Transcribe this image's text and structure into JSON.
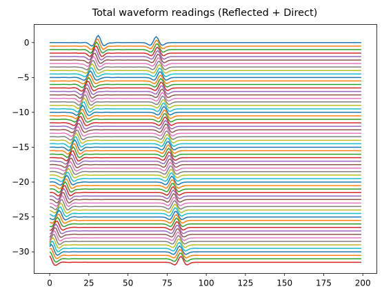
{
  "chart_data": {
    "type": "line",
    "title": "Total waveform readings (Reflected + Direct)",
    "xlabel": "",
    "ylabel": "",
    "xlim": [
      -9.95,
      208.95
    ],
    "ylim": [
      -33.1,
      2.6
    ],
    "xticks": [
      0,
      25,
      50,
      75,
      100,
      125,
      150,
      175,
      200
    ],
    "yticks": [
      0,
      -5,
      -10,
      -15,
      -20,
      -25,
      -30
    ],
    "grid": false,
    "legend": "none",
    "n_samples": 200,
    "trace_count": 64,
    "trace_spacing": 0.5,
    "first_offset": 0,
    "direct_arrival": {
      "start_sample": 31,
      "slope_samples_per_trace": -0.5,
      "wavelet_center_offset": -1,
      "amplitude": 1.0
    },
    "reflected_arrival": {
      "min_sample": 68,
      "slope_samples_per_trace": 0.5,
      "apex_trace": 0,
      "amplitude": 0.85,
      "curvature": 0.12
    },
    "wavelet": {
      "type": "ricker",
      "width_samples": 3.2
    },
    "colors": [
      "#1f77b4",
      "#ff7f0e",
      "#2ca02c",
      "#d62728",
      "#9467bd",
      "#8c564b",
      "#e377c2",
      "#7f7f7f",
      "#bcbd22",
      "#17becf"
    ]
  }
}
